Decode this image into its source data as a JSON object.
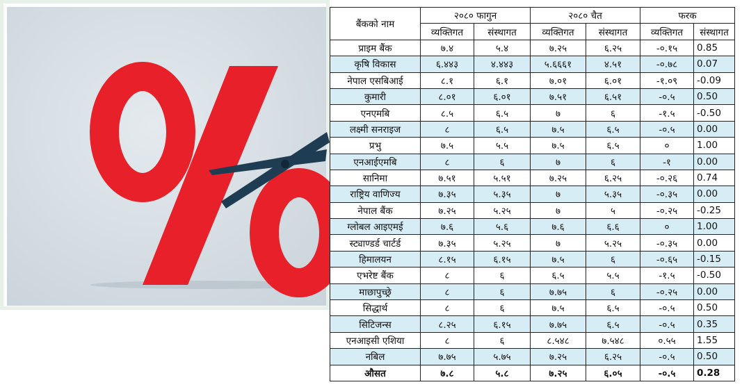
{
  "table": {
    "header": {
      "name": "बैंकको नाम",
      "groups": [
        "२०८० फागुन",
        "२०८० चैत",
        "फरक"
      ],
      "subheaders": [
        "व्यक्तिगत",
        "संस्थागत",
        "व्यक्तिगत",
        "संस्थागत",
        "व्यक्तिगत",
        "संस्थागत"
      ]
    },
    "rows": [
      [
        "प्राइम बैंक",
        "७.४",
        "५.४",
        "७.२५",
        "६.२५",
        "-०.१५",
        "0.85"
      ],
      [
        "कृषि विकास",
        "६.४४३",
        "४.४४३",
        "५.६६६१",
        "४.५१",
        "-०.७८",
        "0.07"
      ],
      [
        "नेपाल एसबिआई",
        "८.१",
        "६.१",
        "७.०१",
        "६.०१",
        "-१.०९",
        "-0.09"
      ],
      [
        "कुमारी",
        "८.०१",
        "६.०१",
        "७.५१",
        "६.५१",
        "-०.५",
        "0.50"
      ],
      [
        "एनएमबि",
        "८.५",
        "६.५",
        "७",
        "६",
        "-१.५",
        "-0.50"
      ],
      [
        "लक्ष्मी सनराइज",
        "८",
        "६.५",
        "७.५",
        "६.५",
        "-०.५",
        "0.00"
      ],
      [
        "प्रभु",
        "७.५",
        "५.५",
        "७.५",
        "६.५",
        "०",
        "1.00"
      ],
      [
        "एनआईएमबि",
        "८",
        "६",
        "७",
        "६",
        "-१",
        "0.00"
      ],
      [
        "सानिमा",
        "७.५१",
        "५.५१",
        "७.२५",
        "६.२५",
        "-०.२६",
        "0.74"
      ],
      [
        "राष्ट्रिय वाणिज्य",
        "७.३५",
        "५.३५",
        "७",
        "५.३५",
        "-०.३५",
        "0.00"
      ],
      [
        "नेपाल बैंक",
        "७.२५",
        "५.२५",
        "७",
        "५",
        "-०.२५",
        "-0.25"
      ],
      [
        "ग्लोबल आइएमई",
        "७.६",
        "५.६",
        "७.६",
        "६.६",
        "०",
        "1.00"
      ],
      [
        "स्ट्याण्डर्ड चार्टर्ड",
        "७.३५",
        "५.२५",
        "७",
        "५.२५",
        "-०.३५",
        "0.00"
      ],
      [
        "हिमालयन",
        "८.१५",
        "६.१५",
        "७.५",
        "६",
        "-०.६५",
        "-0.15"
      ],
      [
        "एभरेष्ट बैंक",
        "८",
        "६",
        "६.५",
        "५.५",
        "-१.५",
        "-0.50"
      ],
      [
        "माछापुच्छ्रे",
        "८",
        "६",
        "७.७५",
        "६",
        "-०.२५",
        "0.00"
      ],
      [
        "सिद्धार्थ",
        "८",
        "६",
        "७.५",
        "६.५",
        "-०.५",
        "0.50"
      ],
      [
        "सिटिजन्स",
        "८.२५",
        "६.१५",
        "७.७५",
        "६.५",
        "-०.५",
        "0.35"
      ],
      [
        "एनआइसी एशिया",
        "८",
        "६",
        "८.५४८",
        "७.५४८",
        "०.५५",
        "1.55"
      ],
      [
        "नबिल",
        "७.७५",
        "५.७५",
        "७.२५",
        "६.२५",
        "-०.५",
        "0.50"
      ]
    ],
    "footer": [
      "औसत",
      "७.८",
      "५.८",
      "७.२५",
      "६.०५",
      "-०.५",
      "0.28"
    ]
  }
}
